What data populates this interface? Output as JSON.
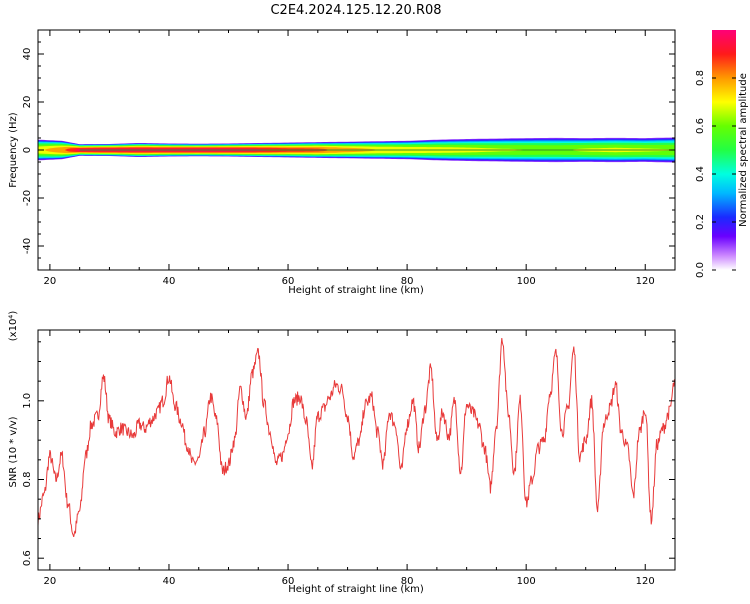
{
  "title": "C2E4.2024.125.12.20.R08",
  "chart_data": [
    {
      "type": "heatmap",
      "xlabel": "Height of straight line (km)",
      "ylabel": "Frequency (Hz)",
      "xlim": [
        18,
        125
      ],
      "ylim": [
        -50,
        50
      ],
      "x_ticks": [
        20,
        40,
        60,
        80,
        100,
        120
      ],
      "y_ticks": [
        -40,
        -20,
        0,
        20,
        40
      ],
      "colorbar": {
        "label": "Normalized spectral amplitude",
        "range": [
          0.0,
          1.0
        ],
        "ticks": [
          "0.0",
          "0.2",
          "0.4",
          "0.6",
          "0.8"
        ]
      },
      "band": [
        {
          "x": 18,
          "halfwidth": 4.5,
          "peak": 0.72
        },
        {
          "x": 22,
          "halfwidth": 4.0,
          "peak": 0.82
        },
        {
          "x": 25,
          "halfwidth": 2.5,
          "peak": 0.96
        },
        {
          "x": 30,
          "halfwidth": 2.6,
          "peak": 0.98
        },
        {
          "x": 35,
          "halfwidth": 3.0,
          "peak": 0.97
        },
        {
          "x": 40,
          "halfwidth": 2.8,
          "peak": 0.97
        },
        {
          "x": 45,
          "halfwidth": 2.7,
          "peak": 0.98
        },
        {
          "x": 50,
          "halfwidth": 2.8,
          "peak": 0.98
        },
        {
          "x": 55,
          "halfwidth": 3.0,
          "peak": 0.95
        },
        {
          "x": 60,
          "halfwidth": 3.2,
          "peak": 0.9
        },
        {
          "x": 65,
          "halfwidth": 3.4,
          "peak": 0.88
        },
        {
          "x": 70,
          "halfwidth": 3.6,
          "peak": 0.8
        },
        {
          "x": 75,
          "halfwidth": 3.8,
          "peak": 0.75
        },
        {
          "x": 80,
          "halfwidth": 4.0,
          "peak": 0.72
        },
        {
          "x": 85,
          "halfwidth": 4.5,
          "peak": 0.7
        },
        {
          "x": 90,
          "halfwidth": 4.8,
          "peak": 0.68
        },
        {
          "x": 95,
          "halfwidth": 5.0,
          "peak": 0.66
        },
        {
          "x": 100,
          "halfwidth": 5.2,
          "peak": 0.65
        },
        {
          "x": 105,
          "halfwidth": 5.3,
          "peak": 0.64
        },
        {
          "x": 110,
          "halfwidth": 5.2,
          "peak": 0.66
        },
        {
          "x": 115,
          "halfwidth": 5.3,
          "peak": 0.67
        },
        {
          "x": 120,
          "halfwidth": 5.2,
          "peak": 0.66
        },
        {
          "x": 125,
          "halfwidth": 5.5,
          "peak": 0.65
        }
      ]
    },
    {
      "type": "line",
      "xlabel": "Height of straight line (km)",
      "ylabel": "SNR (10 * v/v)",
      "y_multiplier": "(x10⁴)",
      "xlim": [
        18,
        125
      ],
      "ylim": [
        0.57,
        1.18
      ],
      "x_ticks": [
        20,
        40,
        60,
        80,
        100,
        120
      ],
      "y_ticks": [
        0.6,
        0.8,
        1.0
      ],
      "color": "#e83a3a",
      "x": [
        18,
        19,
        20,
        21,
        22,
        23,
        24,
        25,
        26,
        27,
        28,
        29,
        30,
        31,
        32,
        33,
        34,
        35,
        36,
        37,
        38,
        39,
        40,
        41,
        42,
        43,
        44,
        45,
        46,
        47,
        48,
        49,
        50,
        51,
        52,
        53,
        54,
        55,
        56,
        57,
        58,
        59,
        60,
        61,
        62,
        63,
        64,
        65,
        66,
        67,
        68,
        69,
        70,
        71,
        72,
        73,
        74,
        75,
        76,
        77,
        78,
        79,
        80,
        81,
        82,
        83,
        84,
        85,
        86,
        87,
        88,
        89,
        90,
        91,
        92,
        93,
        94,
        95,
        96,
        97,
        98,
        99,
        100,
        101,
        102,
        103,
        104,
        105,
        106,
        107,
        108,
        109,
        110,
        111,
        112,
        113,
        114,
        115,
        116,
        117,
        118,
        119,
        120,
        121,
        122,
        123,
        124,
        125
      ],
      "y": [
        0.7,
        0.76,
        0.86,
        0.8,
        0.86,
        0.74,
        0.66,
        0.72,
        0.86,
        0.94,
        0.96,
        1.06,
        0.95,
        0.92,
        0.93,
        0.92,
        0.91,
        0.94,
        0.93,
        0.95,
        0.97,
        1.0,
        1.06,
        0.99,
        0.95,
        0.89,
        0.84,
        0.85,
        0.92,
        1.01,
        0.95,
        0.82,
        0.84,
        0.9,
        1.03,
        0.96,
        1.07,
        1.12,
        0.99,
        0.92,
        0.84,
        0.86,
        0.92,
        1.0,
        1.01,
        0.95,
        0.83,
        0.96,
        0.98,
        1.01,
        1.04,
        1.03,
        0.96,
        0.86,
        0.9,
        0.99,
        1.01,
        0.92,
        0.84,
        0.97,
        0.94,
        0.82,
        0.94,
        1.0,
        0.88,
        0.98,
        1.08,
        0.9,
        0.97,
        0.91,
        1.0,
        0.82,
        0.99,
        0.97,
        0.94,
        0.88,
        0.78,
        0.94,
        1.16,
        0.97,
        0.82,
        1.0,
        0.74,
        0.8,
        0.88,
        0.9,
        1.02,
        1.12,
        0.92,
        0.98,
        1.13,
        0.86,
        0.9,
        1.0,
        0.72,
        0.94,
        0.98,
        1.04,
        0.92,
        0.88,
        0.76,
        0.92,
        0.98,
        0.7,
        0.89,
        0.93,
        0.97,
        1.05
      ]
    }
  ]
}
